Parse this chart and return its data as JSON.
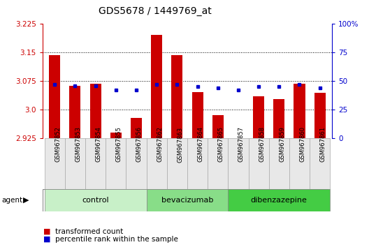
{
  "title": "GDS5678 / 1449769_at",
  "samples": [
    "GSM967852",
    "GSM967853",
    "GSM967854",
    "GSM967855",
    "GSM967856",
    "GSM967862",
    "GSM967863",
    "GSM967864",
    "GSM967865",
    "GSM967857",
    "GSM967858",
    "GSM967859",
    "GSM967860",
    "GSM967861"
  ],
  "transformed_count": [
    3.143,
    3.063,
    3.068,
    2.94,
    2.978,
    3.195,
    3.143,
    3.045,
    2.985,
    2.905,
    3.035,
    3.028,
    3.068,
    3.043
  ],
  "percentile_rank": [
    47,
    46,
    46,
    42,
    42,
    47,
    47,
    45,
    44,
    42,
    45,
    45,
    47,
    44
  ],
  "groups": [
    {
      "label": "control",
      "start": 0,
      "end": 5,
      "color": "#c8f0c8"
    },
    {
      "label": "bevacizumab",
      "start": 5,
      "end": 9,
      "color": "#88dd88"
    },
    {
      "label": "dibenzazepine",
      "start": 9,
      "end": 14,
      "color": "#44cc44"
    }
  ],
  "ylim_left": [
    2.925,
    3.225
  ],
  "ylim_right": [
    0,
    100
  ],
  "yticks_left": [
    2.925,
    3.0,
    3.075,
    3.15,
    3.225
  ],
  "yticks_right": [
    0,
    25,
    50,
    75,
    100
  ],
  "bar_color": "#cc0000",
  "dot_color": "#0000cc",
  "bar_bottom": 2.925,
  "gridlines": [
    3.0,
    3.075,
    3.15
  ]
}
